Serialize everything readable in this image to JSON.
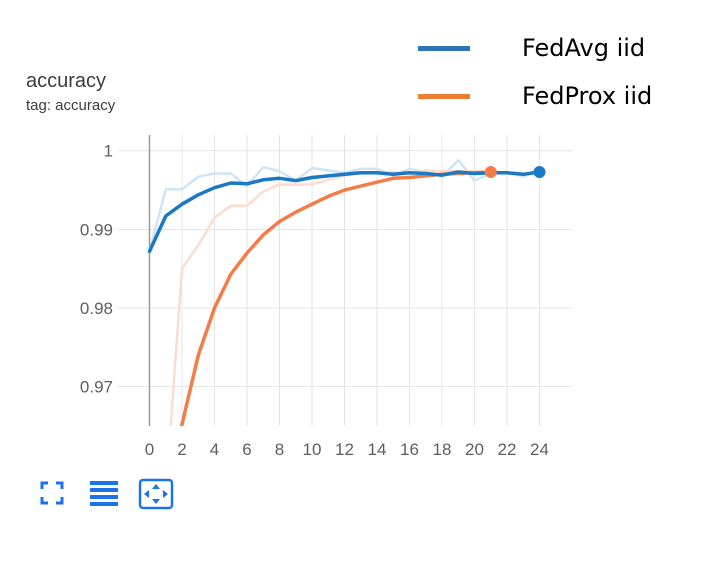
{
  "card": {
    "title": "accuracy",
    "subtitle": "tag: accuracy"
  },
  "legend": [
    {
      "label": "FedAvg iid",
      "color": "#2e75b6"
    },
    {
      "label": "FedProx iid",
      "color": "#ed7d31"
    }
  ],
  "toolbar": {
    "icons": [
      "fullscreen-icon",
      "toggle-log-scale-icon",
      "fit-domain-icon"
    ],
    "color": "#1a73e8"
  },
  "chart_data": {
    "type": "line",
    "title": "accuracy",
    "subtitle": "tag: accuracy",
    "xlim": [
      -2,
      26
    ],
    "ylim": [
      0.965,
      1.002
    ],
    "x_ticks": [
      0,
      2,
      4,
      6,
      8,
      10,
      12,
      14,
      16,
      18,
      20,
      22,
      24
    ],
    "y_ticks": [
      0.97,
      0.98,
      0.99,
      1
    ],
    "y_tick_labels": [
      "0.97",
      "0.98",
      "0.99",
      "1"
    ],
    "grid": true,
    "series": [
      {
        "name": "FedAvg iid",
        "line_color": "#1a79c4",
        "raw_color": "#cfe4f5",
        "smoothed": [
          [
            0,
            0.9872
          ],
          [
            1,
            0.9917
          ],
          [
            2,
            0.9932
          ],
          [
            3,
            0.9944
          ],
          [
            4,
            0.9953
          ],
          [
            5,
            0.9959
          ],
          [
            6,
            0.9958
          ],
          [
            7,
            0.9963
          ],
          [
            8,
            0.9965
          ],
          [
            9,
            0.9962
          ],
          [
            10,
            0.9966
          ],
          [
            11,
            0.9968
          ],
          [
            12,
            0.997
          ],
          [
            13,
            0.9972
          ],
          [
            14,
            0.9972
          ],
          [
            15,
            0.997
          ],
          [
            16,
            0.9972
          ],
          [
            17,
            0.9971
          ],
          [
            18,
            0.9969
          ],
          [
            19,
            0.9973
          ],
          [
            20,
            0.9971
          ],
          [
            21,
            0.9972
          ],
          [
            22,
            0.9972
          ],
          [
            23,
            0.997
          ],
          [
            24,
            0.9973
          ]
        ],
        "raw": [
          [
            0,
            0.9872
          ],
          [
            1,
            0.9951
          ],
          [
            2,
            0.9951
          ],
          [
            3,
            0.9967
          ],
          [
            4,
            0.9971
          ],
          [
            5,
            0.9971
          ],
          [
            6,
            0.9955
          ],
          [
            7,
            0.9979
          ],
          [
            8,
            0.9974
          ],
          [
            9,
            0.9962
          ],
          [
            10,
            0.9978
          ],
          [
            11,
            0.9975
          ],
          [
            12,
            0.9972
          ],
          [
            13,
            0.9977
          ],
          [
            14,
            0.9977
          ],
          [
            15,
            0.9968
          ],
          [
            16,
            0.9977
          ],
          [
            17,
            0.9973
          ],
          [
            18,
            0.9967
          ],
          [
            19,
            0.9988
          ],
          [
            20,
            0.9962
          ],
          [
            21,
            0.9971
          ],
          [
            22,
            0.9973
          ],
          [
            23,
            0.9967
          ],
          [
            24,
            0.9976
          ]
        ]
      },
      {
        "name": "FedProx iid",
        "line_color": "#f47c48",
        "raw_color": "#fddcd0",
        "smoothed": [
          [
            1.5,
            0.961
          ],
          [
            2,
            0.9652
          ],
          [
            3,
            0.974
          ],
          [
            4,
            0.98
          ],
          [
            5,
            0.9843
          ],
          [
            6,
            0.987
          ],
          [
            7,
            0.9893
          ],
          [
            8,
            0.991
          ],
          [
            9,
            0.9922
          ],
          [
            10,
            0.9932
          ],
          [
            11,
            0.9942
          ],
          [
            12,
            0.995
          ],
          [
            13,
            0.9955
          ],
          [
            14,
            0.996
          ],
          [
            15,
            0.9965
          ],
          [
            16,
            0.9966
          ],
          [
            17,
            0.9968
          ],
          [
            18,
            0.997
          ],
          [
            19,
            0.9971
          ],
          [
            20,
            0.9972
          ],
          [
            21,
            0.9973
          ]
        ],
        "raw": [
          [
            1.2,
            0.962
          ],
          [
            2,
            0.985
          ],
          [
            3,
            0.988
          ],
          [
            4,
            0.9915
          ],
          [
            5,
            0.993
          ],
          [
            6,
            0.993
          ],
          [
            7,
            0.9948
          ],
          [
            8,
            0.9957
          ],
          [
            9,
            0.9957
          ],
          [
            10,
            0.9957
          ],
          [
            11,
            0.9963
          ],
          [
            12,
            0.9968
          ],
          [
            13,
            0.9972
          ],
          [
            14,
            0.9973
          ],
          [
            15,
            0.9973
          ],
          [
            16,
            0.997
          ],
          [
            17,
            0.9975
          ],
          [
            18,
            0.9974
          ],
          [
            19,
            0.9974
          ],
          [
            20,
            0.9974
          ],
          [
            21,
            0.9973
          ]
        ]
      }
    ]
  }
}
